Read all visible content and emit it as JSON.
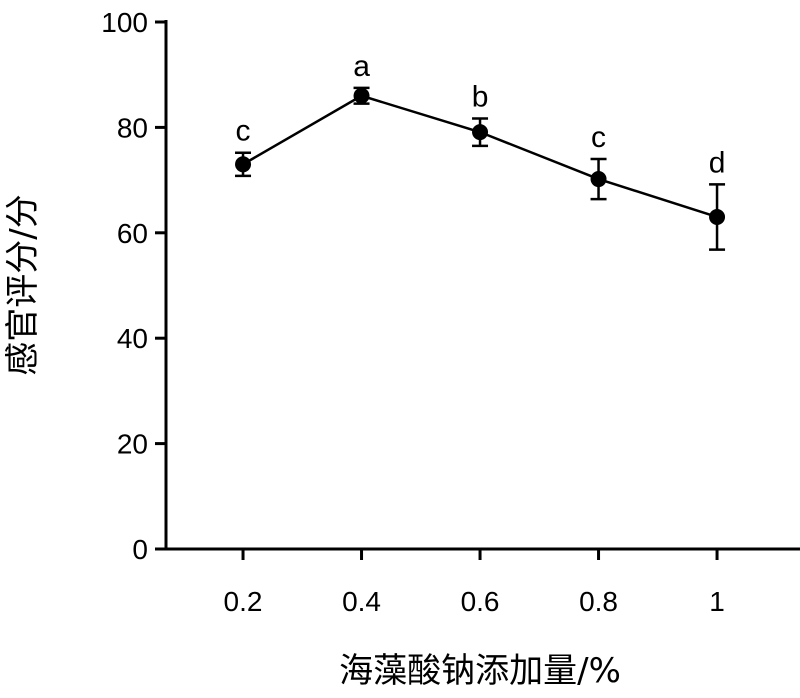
{
  "chart_data": {
    "type": "line",
    "title": "",
    "xlabel": "海藻酸钠添加量/%",
    "ylabel": "感官评分/分",
    "x": [
      0.2,
      0.4,
      0.6,
      0.8,
      1
    ],
    "x_tick_labels": [
      "0.2",
      "0.4",
      "0.6",
      "0.8",
      "1"
    ],
    "y_ticks": [
      0,
      20,
      40,
      60,
      80,
      100
    ],
    "ylim": [
      0,
      100
    ],
    "xlim": [
      0.07,
      1.14
    ],
    "grid": false,
    "series": [
      {
        "values": [
          73.0,
          86.0,
          79.1,
          70.2,
          63.0
        ],
        "errors": [
          2.2,
          1.5,
          2.6,
          3.8,
          6.2
        ],
        "significance_labels": [
          "c",
          "a",
          "b",
          "c",
          "d"
        ],
        "color": "#000000",
        "marker": "filled-circle"
      }
    ]
  }
}
